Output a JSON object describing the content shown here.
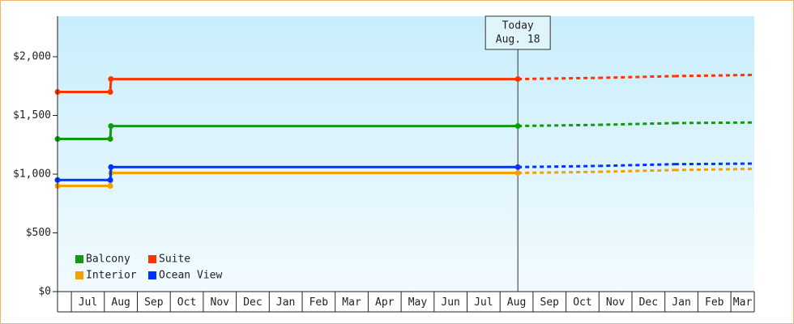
{
  "chart_data": {
    "type": "line",
    "categories": [
      "Jul",
      "Aug",
      "Sep",
      "Oct",
      "Nov",
      "Dec",
      "Jan",
      "Feb",
      "Mar",
      "Apr",
      "May",
      "Jun",
      "Jul",
      "Aug",
      "Sep",
      "Oct",
      "Nov",
      "Dec",
      "Jan",
      "Feb",
      "Mar"
    ],
    "xlim": [
      -0.42,
      20.71
    ],
    "ylim": [
      0,
      2345
    ],
    "yticks": [
      {
        "value": 0,
        "label": "$0"
      },
      {
        "value": 500,
        "label": "$500"
      },
      {
        "value": 1000,
        "label": "$1,000"
      },
      {
        "value": 1500,
        "label": "$1,500"
      },
      {
        "value": 2000,
        "label": "$2,000"
      }
    ],
    "today": {
      "x": 13.54,
      "label_lines": [
        "Today",
        "Aug. 18"
      ]
    },
    "legend": "bottom-left",
    "series": [
      {
        "name": "Balcony",
        "color": "#119911",
        "x": [
          -0.42,
          1.18,
          1.2,
          13.54,
          16,
          18.3,
          20.71
        ],
        "values": [
          1300,
          1300,
          1410,
          1410,
          1420,
          1435,
          1440
        ]
      },
      {
        "name": "Suite",
        "color": "#ff3300",
        "x": [
          -0.42,
          1.18,
          1.2,
          13.54,
          16,
          18.3,
          20.71
        ],
        "values": [
          1700,
          1700,
          1810,
          1810,
          1820,
          1835,
          1845
        ]
      },
      {
        "name": "Interior",
        "color": "#f5a000",
        "x": [
          -0.42,
          1.18,
          1.2,
          13.54,
          16,
          18.3,
          20.71
        ],
        "values": [
          900,
          900,
          1010,
          1010,
          1020,
          1035,
          1045
        ]
      },
      {
        "name": "Ocean View",
        "color": "#0033ff",
        "x": [
          -0.42,
          1.18,
          1.2,
          13.54,
          16,
          18.3,
          20.71
        ],
        "values": [
          950,
          950,
          1060,
          1060,
          1070,
          1085,
          1090
        ]
      }
    ]
  }
}
